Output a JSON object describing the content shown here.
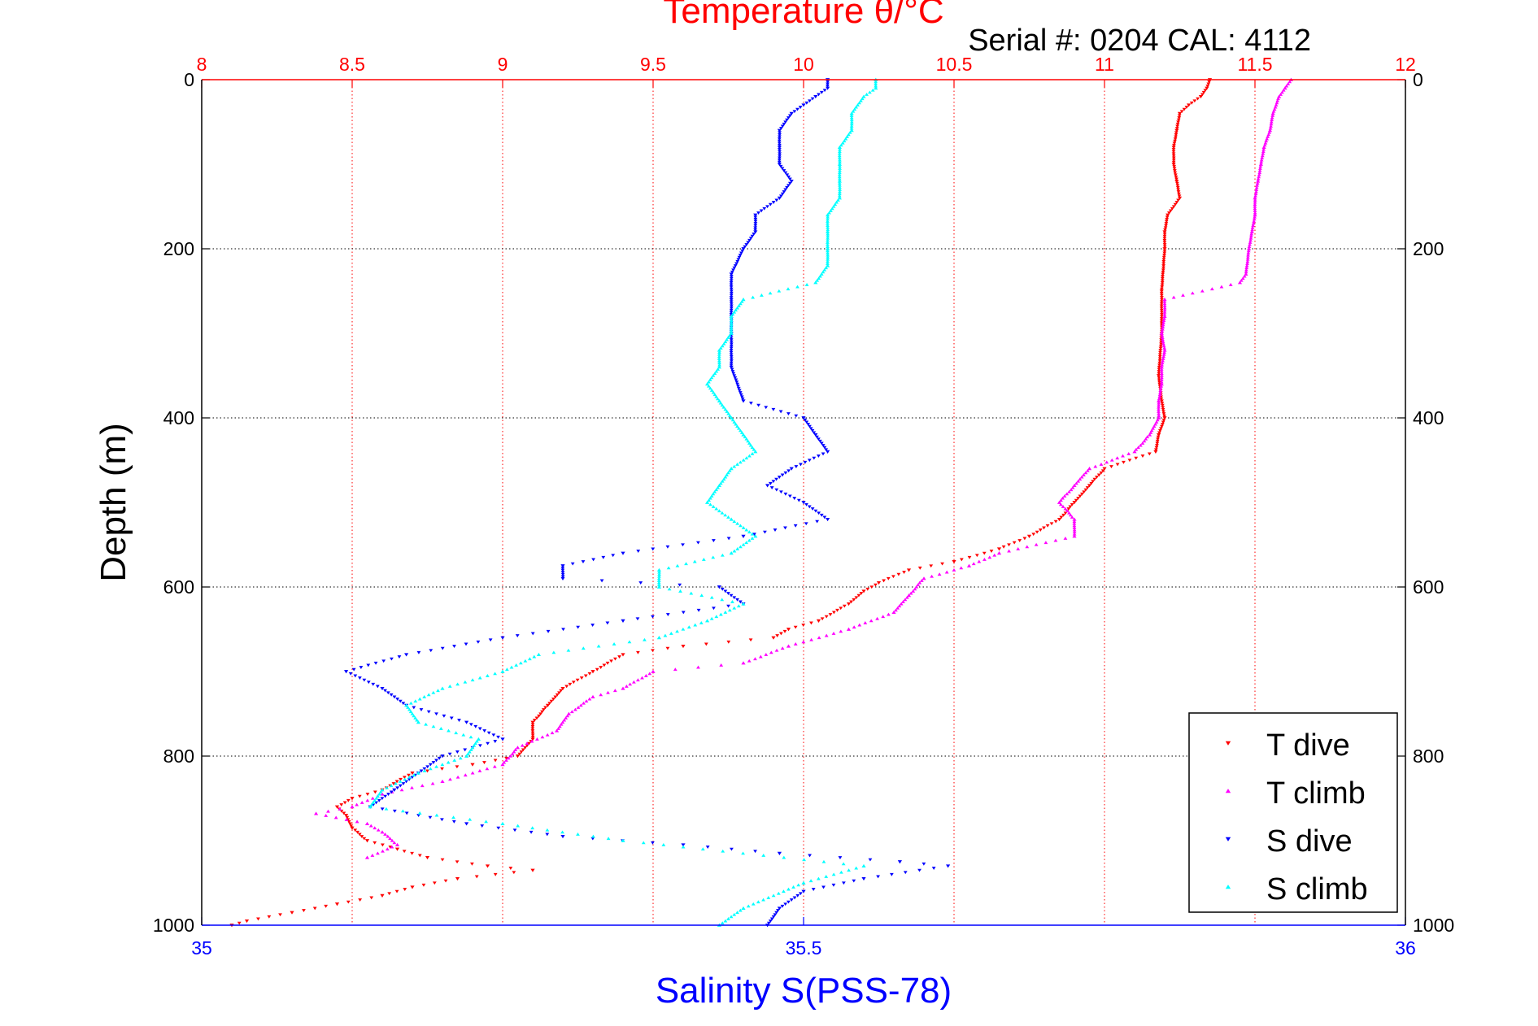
{
  "chart_data": {
    "type": "scatter",
    "title": "Temperature θ/°C",
    "subtitle": "Serial #: 0204  CAL: 4112",
    "ylabel": "Depth (m)",
    "xlabel": "Salinity S(PSS-78)",
    "y_axis": {
      "range": [
        0,
        1000
      ],
      "ticks": [
        0,
        200,
        400,
        600,
        800,
        1000
      ],
      "tick_labels": [
        "0",
        "200",
        "400",
        "600",
        "800",
        "1000"
      ],
      "reversed": true
    },
    "x_top_axis": {
      "quantity": "temperature",
      "range": [
        8,
        12
      ],
      "ticks": [
        8,
        8.5,
        9,
        9.5,
        10,
        10.5,
        11,
        11.5,
        12
      ],
      "tick_labels": [
        "8",
        "8.5",
        "9",
        "9.5",
        "10",
        "10.5",
        "11",
        "11.5",
        "12"
      ],
      "color": "#ff0000"
    },
    "x_bottom_axis": {
      "quantity": "salinity",
      "range": [
        35,
        36
      ],
      "ticks": [
        35,
        35.5,
        36
      ],
      "tick_labels": [
        "35",
        "35.5",
        "36"
      ],
      "color": "#0000ff"
    },
    "grid": true,
    "legend": {
      "placement": "bottom-right"
    },
    "series": [
      {
        "name": "T dive",
        "axis": "temperature",
        "color": "#ff0000",
        "marker": "triangle-down",
        "points": [
          [
            11.35,
            0
          ],
          [
            11.34,
            10
          ],
          [
            11.32,
            20
          ],
          [
            11.28,
            30
          ],
          [
            11.25,
            40
          ],
          [
            11.24,
            60
          ],
          [
            11.23,
            80
          ],
          [
            11.23,
            100
          ],
          [
            11.24,
            120
          ],
          [
            11.25,
            140
          ],
          [
            11.21,
            160
          ],
          [
            11.2,
            180
          ],
          [
            11.2,
            200
          ],
          [
            11.19,
            250
          ],
          [
            11.19,
            300
          ],
          [
            11.18,
            350
          ],
          [
            11.19,
            380
          ],
          [
            11.2,
            400
          ],
          [
            11.18,
            420
          ],
          [
            11.17,
            440
          ],
          [
            11.0,
            460
          ],
          [
            10.95,
            480
          ],
          [
            10.9,
            500
          ],
          [
            10.85,
            520
          ],
          [
            10.75,
            540
          ],
          [
            10.65,
            555
          ],
          [
            10.5,
            570
          ],
          [
            10.35,
            580
          ],
          [
            10.25,
            595
          ],
          [
            10.2,
            605
          ],
          [
            10.15,
            620
          ],
          [
            10.05,
            640
          ],
          [
            9.95,
            650
          ],
          [
            9.9,
            660
          ],
          [
            9.6,
            670
          ],
          [
            9.4,
            680
          ],
          [
            9.3,
            700
          ],
          [
            9.2,
            720
          ],
          [
            9.15,
            740
          ],
          [
            9.1,
            760
          ],
          [
            9.1,
            780
          ],
          [
            9.05,
            800
          ],
          [
            8.9,
            810
          ],
          [
            8.7,
            820
          ],
          [
            8.6,
            840
          ],
          [
            8.5,
            850
          ],
          [
            8.45,
            860
          ],
          [
            8.48,
            870
          ],
          [
            8.5,
            885
          ],
          [
            8.55,
            900
          ],
          [
            8.65,
            910
          ],
          [
            8.75,
            920
          ],
          [
            8.95,
            930
          ],
          [
            9.1,
            935
          ],
          [
            8.85,
            945
          ],
          [
            8.7,
            955
          ],
          [
            8.6,
            965
          ],
          [
            8.45,
            975
          ],
          [
            8.3,
            985
          ],
          [
            8.15,
            995
          ],
          [
            8.1,
            1000
          ]
        ]
      },
      {
        "name": "T climb",
        "axis": "temperature",
        "color": "#ff00ff",
        "marker": "triangle-up",
        "points": [
          [
            11.62,
            0
          ],
          [
            11.6,
            10
          ],
          [
            11.58,
            20
          ],
          [
            11.56,
            40
          ],
          [
            11.55,
            60
          ],
          [
            11.53,
            80
          ],
          [
            11.52,
            100
          ],
          [
            11.51,
            120
          ],
          [
            11.5,
            140
          ],
          [
            11.5,
            160
          ],
          [
            11.49,
            180
          ],
          [
            11.48,
            200
          ],
          [
            11.47,
            230
          ],
          [
            11.45,
            240
          ],
          [
            11.2,
            260
          ],
          [
            11.2,
            280
          ],
          [
            11.19,
            300
          ],
          [
            11.2,
            320
          ],
          [
            11.19,
            340
          ],
          [
            11.19,
            360
          ],
          [
            11.18,
            380
          ],
          [
            11.18,
            400
          ],
          [
            11.15,
            420
          ],
          [
            11.1,
            440
          ],
          [
            10.95,
            460
          ],
          [
            10.9,
            480
          ],
          [
            10.85,
            500
          ],
          [
            10.9,
            520
          ],
          [
            10.9,
            540
          ],
          [
            10.65,
            560
          ],
          [
            10.55,
            575
          ],
          [
            10.4,
            590
          ],
          [
            10.35,
            610
          ],
          [
            10.3,
            630
          ],
          [
            10.15,
            650
          ],
          [
            9.95,
            670
          ],
          [
            9.8,
            690
          ],
          [
            9.5,
            700
          ],
          [
            9.4,
            720
          ],
          [
            9.3,
            730
          ],
          [
            9.22,
            750
          ],
          [
            9.18,
            770
          ],
          [
            9.05,
            790
          ],
          [
            9.0,
            810
          ],
          [
            8.8,
            830
          ],
          [
            8.6,
            845
          ],
          [
            8.5,
            860
          ],
          [
            8.38,
            868
          ],
          [
            8.55,
            880
          ],
          [
            8.6,
            890
          ],
          [
            8.65,
            905
          ],
          [
            8.55,
            920
          ]
        ]
      },
      {
        "name": "S dive",
        "axis": "salinity",
        "color": "#0000ff",
        "marker": "triangle-down",
        "points": [
          [
            35.52,
            0
          ],
          [
            35.52,
            10
          ],
          [
            35.51,
            20
          ],
          [
            35.5,
            30
          ],
          [
            35.49,
            40
          ],
          [
            35.48,
            60
          ],
          [
            35.48,
            80
          ],
          [
            35.48,
            100
          ],
          [
            35.49,
            120
          ],
          [
            35.48,
            140
          ],
          [
            35.46,
            160
          ],
          [
            35.46,
            180
          ],
          [
            35.45,
            200
          ],
          [
            35.44,
            230
          ],
          [
            35.44,
            260
          ],
          [
            35.44,
            300
          ],
          [
            35.44,
            340
          ],
          [
            35.45,
            380
          ],
          [
            35.5,
            400
          ],
          [
            35.51,
            420
          ],
          [
            35.52,
            440
          ],
          [
            35.49,
            460
          ],
          [
            35.47,
            480
          ],
          [
            35.5,
            500
          ],
          [
            35.52,
            520
          ],
          [
            35.45,
            540
          ],
          [
            35.35,
            560
          ],
          [
            35.3,
            575
          ],
          [
            35.3,
            590
          ],
          [
            35.43,
            600
          ],
          [
            35.45,
            620
          ],
          [
            35.35,
            640
          ],
          [
            35.25,
            660
          ],
          [
            35.17,
            680
          ],
          [
            35.12,
            700
          ],
          [
            35.15,
            720
          ],
          [
            35.17,
            740
          ],
          [
            35.22,
            760
          ],
          [
            35.25,
            780
          ],
          [
            35.2,
            800
          ],
          [
            35.18,
            820
          ],
          [
            35.16,
            840
          ],
          [
            35.14,
            860
          ],
          [
            35.22,
            880
          ],
          [
            35.3,
            895
          ],
          [
            35.4,
            905
          ],
          [
            35.48,
            915
          ],
          [
            35.58,
            925
          ],
          [
            35.62,
            930
          ],
          [
            35.55,
            945
          ],
          [
            35.5,
            960
          ],
          [
            35.48,
            980
          ],
          [
            35.47,
            1000
          ]
        ]
      },
      {
        "name": "S climb",
        "axis": "salinity",
        "color": "#00ffff",
        "marker": "triangle-up",
        "points": [
          [
            35.56,
            0
          ],
          [
            35.56,
            10
          ],
          [
            35.55,
            20
          ],
          [
            35.54,
            40
          ],
          [
            35.54,
            60
          ],
          [
            35.53,
            80
          ],
          [
            35.53,
            100
          ],
          [
            35.53,
            120
          ],
          [
            35.53,
            140
          ],
          [
            35.52,
            160
          ],
          [
            35.52,
            180
          ],
          [
            35.52,
            200
          ],
          [
            35.52,
            220
          ],
          [
            35.51,
            240
          ],
          [
            35.45,
            260
          ],
          [
            35.44,
            280
          ],
          [
            35.44,
            300
          ],
          [
            35.43,
            320
          ],
          [
            35.43,
            340
          ],
          [
            35.42,
            360
          ],
          [
            35.43,
            380
          ],
          [
            35.44,
            400
          ],
          [
            35.45,
            420
          ],
          [
            35.46,
            440
          ],
          [
            35.44,
            460
          ],
          [
            35.43,
            480
          ],
          [
            35.42,
            500
          ],
          [
            35.44,
            520
          ],
          [
            35.46,
            540
          ],
          [
            35.44,
            560
          ],
          [
            35.38,
            580
          ],
          [
            35.38,
            600
          ],
          [
            35.45,
            620
          ],
          [
            35.42,
            640
          ],
          [
            35.38,
            660
          ],
          [
            35.28,
            680
          ],
          [
            35.25,
            700
          ],
          [
            35.2,
            720
          ],
          [
            35.17,
            740
          ],
          [
            35.18,
            760
          ],
          [
            35.23,
            780
          ],
          [
            35.22,
            800
          ],
          [
            35.18,
            820
          ],
          [
            35.15,
            840
          ],
          [
            35.14,
            860
          ],
          [
            35.25,
            880
          ],
          [
            35.35,
            900
          ],
          [
            35.55,
            930
          ],
          [
            35.5,
            950
          ],
          [
            35.45,
            980
          ],
          [
            35.43,
            1000
          ]
        ]
      }
    ]
  }
}
